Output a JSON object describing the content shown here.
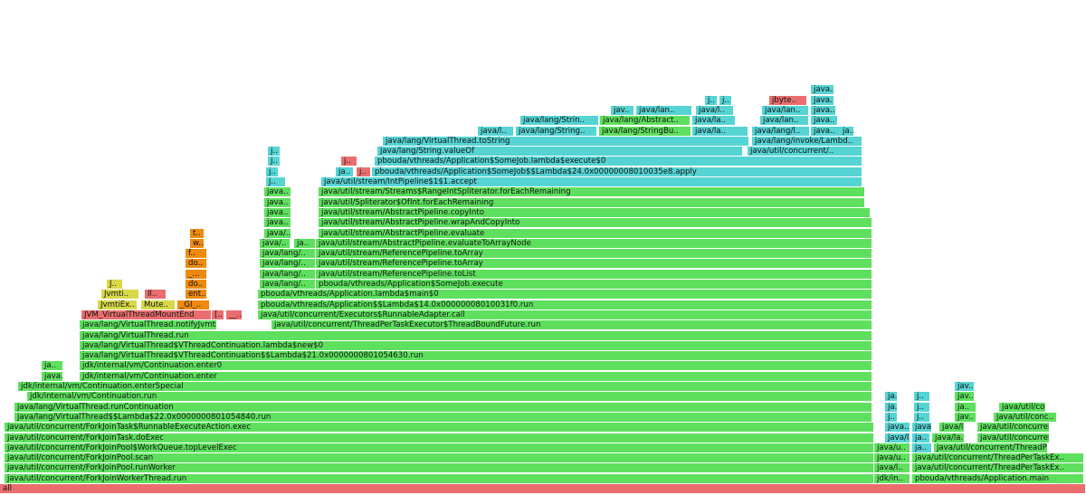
{
  "chart_data": {
    "type": "flame",
    "title": "",
    "total_width": 1200,
    "colors": {
      "green": "#5ee05e",
      "aqua": "#56d4d4",
      "red": "#ea6e6e",
      "orange": "#ee8a10",
      "yellow": "#d8d84a"
    },
    "frames": [
      {
        "label": "all",
        "level": 0,
        "start": 0,
        "width": 1200,
        "kind": "red"
      },
      {
        "label": "java/util/concurrent/ForkJoinWorkerThread.run",
        "level": 1,
        "start": 5,
        "width": 961,
        "kind": "green"
      },
      {
        "label": "java/util/concurrent/ForkJoinPool.runWorker",
        "level": 2,
        "start": 5,
        "width": 961,
        "kind": "green"
      },
      {
        "label": "java/util/concurrent/ForkJoinPool.scan",
        "level": 3,
        "start": 5,
        "width": 961,
        "kind": "green"
      },
      {
        "label": "java/util/concurrent/ForkJoinPool$WorkQueue.topLevelExec",
        "level": 4,
        "start": 5,
        "width": 961,
        "kind": "green"
      },
      {
        "label": "java/util/concurrent/ForkJoinTask.doExec",
        "level": 5,
        "start": 5,
        "width": 961,
        "kind": "green"
      },
      {
        "label": "java/util/concurrent/ForkJoinTask$RunnableExecuteAction.exec",
        "level": 6,
        "start": 5,
        "width": 961,
        "kind": "green"
      },
      {
        "label": "java/lang/VirtualThread$$Lambda$22.0x0000000801054840.run",
        "level": 7,
        "start": 16,
        "width": 948,
        "kind": "green"
      },
      {
        "label": "java/lang/VirtualThread.runContinuation",
        "level": 8,
        "start": 16,
        "width": 948,
        "kind": "green"
      },
      {
        "label": "jdk/internal/vm/Continuation.run",
        "level": 9,
        "start": 30,
        "width": 934,
        "kind": "green"
      },
      {
        "label": "jdk/internal/vm/Continuation.enterSpecial",
        "level": 10,
        "start": 20,
        "width": 944,
        "kind": "green"
      },
      {
        "label": "java..",
        "level": 11,
        "start": 46,
        "width": 24,
        "kind": "green"
      },
      {
        "label": "jdk/internal/vm/Continuation.enter",
        "level": 11,
        "start": 88,
        "width": 876,
        "kind": "green"
      },
      {
        "label": "ja..",
        "level": 12,
        "start": 46,
        "width": 24,
        "kind": "green"
      },
      {
        "label": "jdk/internal/vm/Continuation.enter0",
        "level": 12,
        "start": 88,
        "width": 876,
        "kind": "green"
      },
      {
        "label": "java/lang/VirtualThread$VThreadContinuation$$Lambda$21.0x0000000801054630.run",
        "level": 13,
        "start": 88,
        "width": 876,
        "kind": "green"
      },
      {
        "label": "java/lang/VirtualThread$VThreadContinuation.lambda$new$0",
        "level": 14,
        "start": 88,
        "width": 876,
        "kind": "green"
      },
      {
        "label": "java/lang/VirtualThread.run",
        "level": 15,
        "start": 88,
        "width": 876,
        "kind": "green"
      },
      {
        "label": "java/lang/VirtualThread.notifyJvmtiMo..",
        "level": 16,
        "start": 88,
        "width": 152,
        "kind": "green"
      },
      {
        "label": "java/util/concurrent/ThreadPerTaskExecutor$ThreadBoundFuture.run",
        "level": 16,
        "start": 300,
        "width": 664,
        "kind": "green"
      },
      {
        "label": "JVM_VirtualThreadMountEnd",
        "level": 17,
        "start": 90,
        "width": 144,
        "kind": "red"
      },
      {
        "label": "[..",
        "level": 17,
        "start": 234,
        "width": 14,
        "kind": "red"
      },
      {
        "label": "__..",
        "level": 17,
        "start": 250,
        "width": 18,
        "kind": "red"
      },
      {
        "label": "java/util/concurrent/Executors$RunnableAdapter.call",
        "level": 17,
        "start": 285,
        "width": 679,
        "kind": "green"
      },
      {
        "label": "JvmtiEx..",
        "level": 18,
        "start": 108,
        "width": 44,
        "kind": "yellow"
      },
      {
        "label": "Mute..",
        "level": 18,
        "start": 156,
        "width": 38,
        "kind": "yellow"
      },
      {
        "label": "_GI_..",
        "level": 18,
        "start": 196,
        "width": 36,
        "kind": "orange"
      },
      {
        "label": "pbouda/vthreads/Application$$Lambda$14.0x00000008010031f0.run",
        "level": 18,
        "start": 285,
        "width": 679,
        "kind": "green"
      },
      {
        "label": "Jvmti..",
        "level": 19,
        "start": 112,
        "width": 42,
        "kind": "yellow"
      },
      {
        "label": "Il..",
        "level": 19,
        "start": 160,
        "width": 24,
        "kind": "red"
      },
      {
        "label": "ent..",
        "level": 19,
        "start": 205,
        "width": 24,
        "kind": "orange"
      },
      {
        "label": "pbouda/vthreads/Application.lambda$main$0",
        "level": 19,
        "start": 285,
        "width": 679,
        "kind": "green"
      },
      {
        "label": "J..",
        "level": 20,
        "start": 118,
        "width": 18,
        "kind": "yellow"
      },
      {
        "label": "do..",
        "level": 20,
        "start": 205,
        "width": 24,
        "kind": "orange"
      },
      {
        "label": "java/lang/..",
        "level": 20,
        "start": 287,
        "width": 62,
        "kind": "green"
      },
      {
        "label": "pbouda/vthreads/Application$SomeJob.execute",
        "level": 20,
        "start": 349,
        "width": 615,
        "kind": "green"
      },
      {
        "label": "_...",
        "level": 21,
        "start": 205,
        "width": 24,
        "kind": "orange"
      },
      {
        "label": "java/lang/..",
        "level": 21,
        "start": 287,
        "width": 62,
        "kind": "green"
      },
      {
        "label": "java/util/stream/ReferencePipeline.toList",
        "level": 21,
        "start": 349,
        "width": 615,
        "kind": "green"
      },
      {
        "label": "do..",
        "level": 22,
        "start": 205,
        "width": 24,
        "kind": "orange"
      },
      {
        "label": "java/lang/..",
        "level": 22,
        "start": 287,
        "width": 62,
        "kind": "green"
      },
      {
        "label": "java/util/stream/ReferencePipeline.toArray",
        "level": 22,
        "start": 349,
        "width": 615,
        "kind": "green"
      },
      {
        "label": "f..",
        "level": 23,
        "start": 205,
        "width": 24,
        "kind": "orange"
      },
      {
        "label": "java/lang/..",
        "level": 23,
        "start": 287,
        "width": 62,
        "kind": "green"
      },
      {
        "label": "java/util/stream/ReferencePipeline.toArray",
        "level": 23,
        "start": 349,
        "width": 615,
        "kind": "green"
      },
      {
        "label": "w..",
        "level": 24,
        "start": 210,
        "width": 16,
        "kind": "orange"
      },
      {
        "label": "java/..",
        "level": 24,
        "start": 287,
        "width": 34,
        "kind": "green"
      },
      {
        "label": "ja..",
        "level": 24,
        "start": 325,
        "width": 24,
        "kind": "green"
      },
      {
        "label": "java/util/stream/AbstractPipeline.evaluateToArrayNode",
        "level": 24,
        "start": 349,
        "width": 615,
        "kind": "green"
      },
      {
        "label": "t..",
        "level": 25,
        "start": 210,
        "width": 16,
        "kind": "orange"
      },
      {
        "label": "java/..",
        "level": 25,
        "start": 292,
        "width": 30,
        "kind": "green"
      },
      {
        "label": "java/util/stream/AbstractPipeline.evaluate",
        "level": 25,
        "start": 352,
        "width": 612,
        "kind": "green"
      },
      {
        "label": "java..",
        "level": 26,
        "start": 292,
        "width": 30,
        "kind": "green"
      },
      {
        "label": "java/util/stream/AbstractPipeline.wrapAndCopyInto",
        "level": 26,
        "start": 352,
        "width": 612,
        "kind": "green"
      },
      {
        "label": "java..",
        "level": 27,
        "start": 292,
        "width": 30,
        "kind": "green"
      },
      {
        "label": "java/util/stream/AbstractPipeline.copyInto",
        "level": 27,
        "start": 352,
        "width": 610,
        "kind": "green"
      },
      {
        "label": "java..",
        "level": 28,
        "start": 292,
        "width": 30,
        "kind": "green"
      },
      {
        "label": "java/util/Spliterator$OfInt.forEachRemaining",
        "level": 28,
        "start": 352,
        "width": 604,
        "kind": "green"
      },
      {
        "label": "java..",
        "level": 29,
        "start": 292,
        "width": 30,
        "kind": "green"
      },
      {
        "label": "java/util/stream/Streams$RangeIntSpliterator.forEachRemaining",
        "level": 29,
        "start": 352,
        "width": 604,
        "kind": "green"
      },
      {
        "label": "j..",
        "level": 30,
        "start": 294,
        "width": 22,
        "kind": "aqua"
      },
      {
        "label": "java/util/stream/IntPipeline$1$1.accept",
        "level": 30,
        "start": 355,
        "width": 598,
        "kind": "aqua"
      },
      {
        "label": "j..",
        "level": 31,
        "start": 294,
        "width": 14,
        "kind": "aqua"
      },
      {
        "label": "ja..",
        "level": 31,
        "start": 371,
        "width": 20,
        "kind": "aqua"
      },
      {
        "label": "j..",
        "level": 31,
        "start": 394,
        "width": 16,
        "kind": "red"
      },
      {
        "label": "pbouda/vthreads/Application$SomeJob$$Lambda$24.0x00000008010035e8.apply",
        "level": 31,
        "start": 411,
        "width": 542,
        "kind": "aqua"
      },
      {
        "label": "j..",
        "level": 32,
        "start": 296,
        "width": 14,
        "kind": "aqua"
      },
      {
        "label": "j..",
        "level": 32,
        "start": 377,
        "width": 18,
        "kind": "red"
      },
      {
        "label": "pbouda/vthreads/Application$SomeJob.lambda$execute$0",
        "level": 32,
        "start": 414,
        "width": 539,
        "kind": "aqua"
      },
      {
        "label": "j..",
        "level": 33,
        "start": 296,
        "width": 14,
        "kind": "aqua"
      },
      {
        "label": "java/lang/String.valueOf",
        "level": 33,
        "start": 417,
        "width": 404,
        "kind": "aqua"
      },
      {
        "label": "java/util/concurrent/..",
        "level": 33,
        "start": 826,
        "width": 127,
        "kind": "aqua"
      },
      {
        "label": "java/lang/VirtualThread.toString",
        "level": 34,
        "start": 423,
        "width": 405,
        "kind": "aqua"
      },
      {
        "label": "java/lang/invoke/Lambd..",
        "level": 34,
        "start": 831,
        "width": 122,
        "kind": "aqua"
      },
      {
        "label": "java/l..",
        "level": 35,
        "start": 528,
        "width": 40,
        "kind": "aqua"
      },
      {
        "label": "java/lang/String..",
        "level": 35,
        "start": 570,
        "width": 90,
        "kind": "aqua"
      },
      {
        "label": "java/lang/StringBu..",
        "level": 35,
        "start": 662,
        "width": 102,
        "kind": "green"
      },
      {
        "label": "java/la..",
        "level": 35,
        "start": 765,
        "width": 62,
        "kind": "aqua"
      },
      {
        "label": "java/lang/l..",
        "level": 35,
        "start": 831,
        "width": 64,
        "kind": "aqua"
      },
      {
        "label": "java..",
        "level": 35,
        "start": 896,
        "width": 34,
        "kind": "aqua"
      },
      {
        "label": "ja..",
        "level": 35,
        "start": 928,
        "width": 16,
        "kind": "aqua"
      },
      {
        "label": "java/lang/Strin..",
        "level": 36,
        "start": 575,
        "width": 87,
        "kind": "aqua"
      },
      {
        "label": "java/lang/Abstract..",
        "level": 36,
        "start": 663,
        "width": 100,
        "kind": "green"
      },
      {
        "label": "java/la..",
        "level": 36,
        "start": 765,
        "width": 48,
        "kind": "aqua"
      },
      {
        "label": "java/lan..",
        "level": 36,
        "start": 840,
        "width": 54,
        "kind": "aqua"
      },
      {
        "label": "java..",
        "level": 36,
        "start": 896,
        "width": 30,
        "kind": "aqua"
      },
      {
        "label": "jav..",
        "level": 37,
        "start": 675,
        "width": 26,
        "kind": "aqua"
      },
      {
        "label": "java/lan..",
        "level": 37,
        "start": 703,
        "width": 62,
        "kind": "aqua"
      },
      {
        "label": "java/l..",
        "level": 37,
        "start": 769,
        "width": 42,
        "kind": "aqua"
      },
      {
        "label": "java/lan..",
        "level": 37,
        "start": 842,
        "width": 52,
        "kind": "aqua"
      },
      {
        "label": "java..",
        "level": 37,
        "start": 896,
        "width": 28,
        "kind": "aqua"
      },
      {
        "label": "j..",
        "level": 38,
        "start": 779,
        "width": 14,
        "kind": "aqua"
      },
      {
        "label": "j..",
        "level": 38,
        "start": 795,
        "width": 14,
        "kind": "aqua"
      },
      {
        "label": "jbyte..",
        "level": 38,
        "start": 850,
        "width": 42,
        "kind": "red"
      },
      {
        "label": "java..",
        "level": 38,
        "start": 896,
        "width": 26,
        "kind": "aqua"
      },
      {
        "label": "java..",
        "level": 39,
        "start": 896,
        "width": 26,
        "kind": "aqua"
      },
      {
        "label": "jdk/in..",
        "level": 1,
        "start": 966,
        "width": 40,
        "kind": "green"
      },
      {
        "label": "pbouda/vthreads/Application.main",
        "level": 1,
        "start": 1008,
        "width": 190,
        "kind": "green"
      },
      {
        "label": "java/l..",
        "level": 2,
        "start": 966,
        "width": 40,
        "kind": "green"
      },
      {
        "label": "java/util/concurrent/ThreadPerTaskEx..",
        "level": 2,
        "start": 1008,
        "width": 190,
        "kind": "green"
      },
      {
        "label": "java/u..",
        "level": 3,
        "start": 966,
        "width": 40,
        "kind": "green"
      },
      {
        "label": "java/util/concurrent/ThreadPerTaskEx..",
        "level": 3,
        "start": 1008,
        "width": 190,
        "kind": "green"
      },
      {
        "label": "java/u..",
        "level": 4,
        "start": 966,
        "width": 40,
        "kind": "green"
      },
      {
        "label": "ja..",
        "level": 4,
        "start": 1008,
        "width": 22,
        "kind": "aqua"
      },
      {
        "label": "java/util/concurrent/ThreadPerT..",
        "level": 4,
        "start": 1032,
        "width": 126,
        "kind": "green"
      },
      {
        "label": "java/la..",
        "level": 5,
        "start": 978,
        "width": 28,
        "kind": "aqua"
      },
      {
        "label": "ja..",
        "level": 5,
        "start": 1008,
        "width": 20,
        "kind": "aqua"
      },
      {
        "label": "java/la..",
        "level": 5,
        "start": 1030,
        "width": 36,
        "kind": "green"
      },
      {
        "label": "java/util/concurrent/..",
        "level": 5,
        "start": 1080,
        "width": 80,
        "kind": "green"
      },
      {
        "label": "java..",
        "level": 6,
        "start": 978,
        "width": 28,
        "kind": "aqua"
      },
      {
        "label": "java..",
        "level": 6,
        "start": 1008,
        "width": 22,
        "kind": "aqua"
      },
      {
        "label": "java/l..",
        "level": 6,
        "start": 1038,
        "width": 28,
        "kind": "green"
      },
      {
        "label": "java/util/concurrent/..",
        "level": 6,
        "start": 1080,
        "width": 80,
        "kind": "green"
      },
      {
        "label": "j..",
        "level": 7,
        "start": 978,
        "width": 14,
        "kind": "aqua"
      },
      {
        "label": "j..",
        "level": 7,
        "start": 1010,
        "width": 18,
        "kind": "aqua"
      },
      {
        "label": "jav..",
        "level": 7,
        "start": 1055,
        "width": 24,
        "kind": "green"
      },
      {
        "label": "java/util/conc..",
        "level": 7,
        "start": 1098,
        "width": 70,
        "kind": "green"
      },
      {
        "label": "ja..",
        "level": 8,
        "start": 978,
        "width": 14,
        "kind": "aqua"
      },
      {
        "label": "j..",
        "level": 8,
        "start": 1010,
        "width": 18,
        "kind": "aqua"
      },
      {
        "label": "ja..",
        "level": 8,
        "start": 1055,
        "width": 24,
        "kind": "green"
      },
      {
        "label": "java/util/con..",
        "level": 8,
        "start": 1104,
        "width": 52,
        "kind": "green"
      },
      {
        "label": "ja..",
        "level": 9,
        "start": 978,
        "width": 14,
        "kind": "aqua"
      },
      {
        "label": "j..",
        "level": 9,
        "start": 1010,
        "width": 18,
        "kind": "aqua"
      },
      {
        "label": "jav..",
        "level": 9,
        "start": 1055,
        "width": 22,
        "kind": "green"
      },
      {
        "label": "jav..",
        "level": 10,
        "start": 1055,
        "width": 22,
        "kind": "aqua"
      }
    ]
  }
}
